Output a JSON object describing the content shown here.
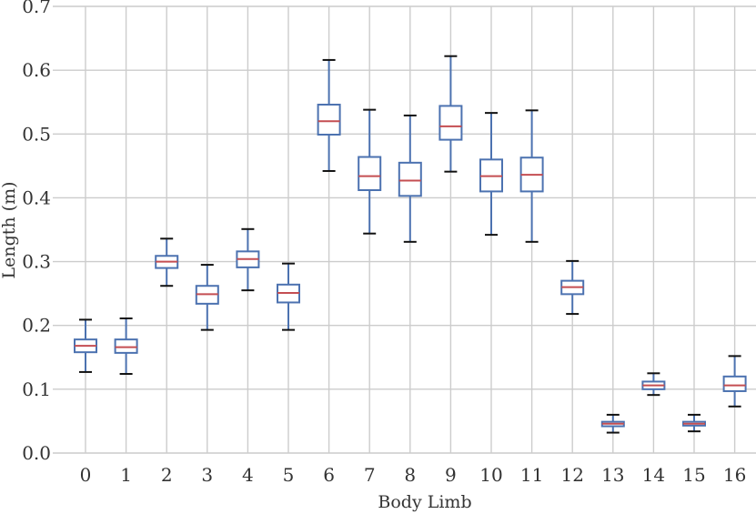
{
  "chart_data": {
    "type": "box",
    "xlabel": "Body Limb",
    "ylabel": "Length (m)",
    "ylim": [
      0.0,
      0.7
    ],
    "yticks": [
      "0.0",
      "0.1",
      "0.2",
      "0.3",
      "0.4",
      "0.5",
      "0.6",
      "0.7"
    ],
    "grid": true,
    "colors": {
      "box": "#4c72b0",
      "median": "#c44e52",
      "cap": "#111111",
      "grid": "#cccccc"
    },
    "categories": [
      "0",
      "1",
      "2",
      "3",
      "4",
      "5",
      "6",
      "7",
      "8",
      "9",
      "10",
      "11",
      "12",
      "13",
      "14",
      "15",
      "16"
    ],
    "boxes": [
      {
        "whisker_low": 0.127,
        "q1": 0.158,
        "median": 0.168,
        "q3": 0.178,
        "whisker_high": 0.209
      },
      {
        "whisker_low": 0.124,
        "q1": 0.157,
        "median": 0.166,
        "q3": 0.178,
        "whisker_high": 0.211
      },
      {
        "whisker_low": 0.262,
        "q1": 0.29,
        "median": 0.3,
        "q3": 0.309,
        "whisker_high": 0.336
      },
      {
        "whisker_low": 0.193,
        "q1": 0.234,
        "median": 0.249,
        "q3": 0.262,
        "whisker_high": 0.295
      },
      {
        "whisker_low": 0.255,
        "q1": 0.291,
        "median": 0.304,
        "q3": 0.316,
        "whisker_high": 0.351
      },
      {
        "whisker_low": 0.193,
        "q1": 0.236,
        "median": 0.251,
        "q3": 0.264,
        "whisker_high": 0.297
      },
      {
        "whisker_low": 0.442,
        "q1": 0.499,
        "median": 0.52,
        "q3": 0.546,
        "whisker_high": 0.616
      },
      {
        "whisker_low": 0.344,
        "q1": 0.412,
        "median": 0.434,
        "q3": 0.464,
        "whisker_high": 0.538
      },
      {
        "whisker_low": 0.331,
        "q1": 0.403,
        "median": 0.427,
        "q3": 0.455,
        "whisker_high": 0.529
      },
      {
        "whisker_low": 0.441,
        "q1": 0.491,
        "median": 0.512,
        "q3": 0.544,
        "whisker_high": 0.622
      },
      {
        "whisker_low": 0.342,
        "q1": 0.41,
        "median": 0.434,
        "q3": 0.46,
        "whisker_high": 0.533
      },
      {
        "whisker_low": 0.331,
        "q1": 0.41,
        "median": 0.436,
        "q3": 0.463,
        "whisker_high": 0.537
      },
      {
        "whisker_low": 0.218,
        "q1": 0.249,
        "median": 0.26,
        "q3": 0.27,
        "whisker_high": 0.301
      },
      {
        "whisker_low": 0.032,
        "q1": 0.042,
        "median": 0.046,
        "q3": 0.049,
        "whisker_high": 0.06
      },
      {
        "whisker_low": 0.091,
        "q1": 0.1,
        "median": 0.106,
        "q3": 0.112,
        "whisker_high": 0.125
      },
      {
        "whisker_low": 0.034,
        "q1": 0.043,
        "median": 0.046,
        "q3": 0.049,
        "whisker_high": 0.06
      },
      {
        "whisker_low": 0.073,
        "q1": 0.097,
        "median": 0.106,
        "q3": 0.12,
        "whisker_high": 0.152
      }
    ]
  }
}
